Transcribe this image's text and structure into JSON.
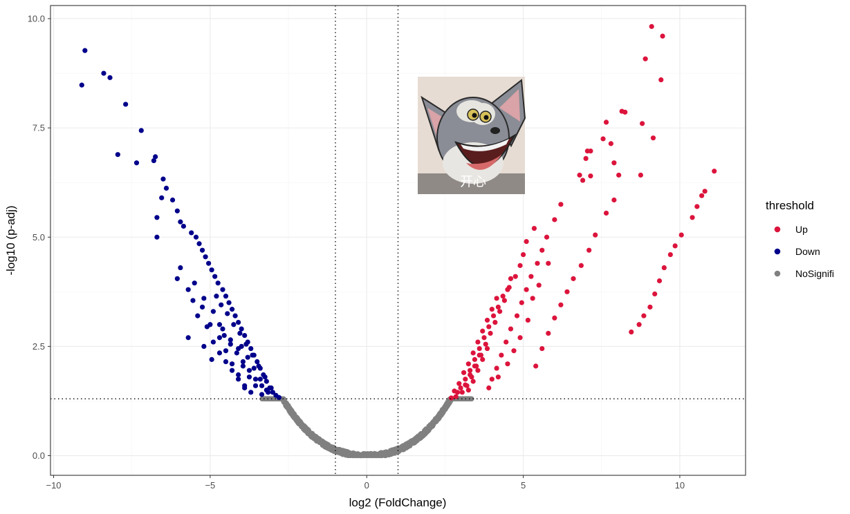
{
  "chart_data": {
    "type": "scatter",
    "title": "",
    "xlabel": "log2 (FoldChange)",
    "ylabel": "-log10 (p-adj)",
    "xlim": [
      -10.1,
      12.1
    ],
    "ylim": [
      -0.45,
      10.3
    ],
    "x_ticks": [
      -10,
      -5,
      0,
      5,
      10
    ],
    "x_tick_labels": [
      "−10",
      "−5",
      "0",
      "5",
      "10"
    ],
    "y_ticks": [
      0,
      2.5,
      5,
      7.5,
      10
    ],
    "y_tick_labels": [
      "0.0",
      "2.5",
      "5.0",
      "7.5",
      "10.0"
    ],
    "grid": true,
    "thresholds": {
      "log2fc": [
        -1,
        1
      ],
      "neg_log10_padj": 1.3
    },
    "legend": {
      "title": "threshold",
      "position": "right",
      "entries": [
        {
          "label": "Up",
          "color": "#DC143C"
        },
        {
          "label": "Down",
          "color": "#00008B"
        },
        {
          "label": "NoSignifi",
          "color": "#808080"
        }
      ]
    },
    "series": [
      {
        "name": "Up",
        "color": "#DC143C",
        "points": [
          [
            9.1,
            9.82
          ],
          [
            9.45,
            9.6
          ],
          [
            8.9,
            9.08
          ],
          [
            9.4,
            8.6
          ],
          [
            8.15,
            7.88
          ],
          [
            8.25,
            7.86
          ],
          [
            8.8,
            7.6
          ],
          [
            7.65,
            7.63
          ],
          [
            9.15,
            7.27
          ],
          [
            7.55,
            7.25
          ],
          [
            7.8,
            7.14
          ],
          [
            7.05,
            6.97
          ],
          [
            7.15,
            6.97
          ],
          [
            7.0,
            6.8
          ],
          [
            7.9,
            6.7
          ],
          [
            8.05,
            6.42
          ],
          [
            8.75,
            6.42
          ],
          [
            6.8,
            6.42
          ],
          [
            7.15,
            6.4
          ],
          [
            6.9,
            6.3
          ],
          [
            11.1,
            6.51
          ],
          [
            10.8,
            6.05
          ],
          [
            10.7,
            5.95
          ],
          [
            10.55,
            5.7
          ],
          [
            10.4,
            5.45
          ],
          [
            10.05,
            5.05
          ],
          [
            9.85,
            4.8
          ],
          [
            9.7,
            4.6
          ],
          [
            9.5,
            4.3
          ],
          [
            9.35,
            4.0
          ],
          [
            9.2,
            3.7
          ],
          [
            9.05,
            3.4
          ],
          [
            8.85,
            3.2
          ],
          [
            8.7,
            3.0
          ],
          [
            8.45,
            2.83
          ],
          [
            7.9,
            5.85
          ],
          [
            7.65,
            5.55
          ],
          [
            7.3,
            5.05
          ],
          [
            7.1,
            4.7
          ],
          [
            6.85,
            4.35
          ],
          [
            6.6,
            4.05
          ],
          [
            6.4,
            3.75
          ],
          [
            6.2,
            3.45
          ],
          [
            6.0,
            3.15
          ],
          [
            5.8,
            2.8
          ],
          [
            5.6,
            2.45
          ],
          [
            5.4,
            2.05
          ],
          [
            6.2,
            5.75
          ],
          [
            6.0,
            5.4
          ],
          [
            5.75,
            5.0
          ],
          [
            5.6,
            4.7
          ],
          [
            5.45,
            4.4
          ],
          [
            5.25,
            4.1
          ],
          [
            5.1,
            3.8
          ],
          [
            4.95,
            3.5
          ],
          [
            4.8,
            3.2
          ],
          [
            4.6,
            2.9
          ],
          [
            4.45,
            2.6
          ],
          [
            4.3,
            2.3
          ],
          [
            4.15,
            2.0
          ],
          [
            4.0,
            1.75
          ],
          [
            5.8,
            4.4
          ],
          [
            5.5,
            3.9
          ],
          [
            5.3,
            3.6
          ],
          [
            5.15,
            3.1
          ],
          [
            4.9,
            2.7
          ],
          [
            4.7,
            2.4
          ],
          [
            4.5,
            2.1
          ],
          [
            4.2,
            1.8
          ],
          [
            3.9,
            1.55
          ],
          [
            5.35,
            5.2
          ],
          [
            5.1,
            4.9
          ],
          [
            5.0,
            4.6
          ],
          [
            4.9,
            4.35
          ],
          [
            4.75,
            4.1
          ],
          [
            4.55,
            3.85
          ],
          [
            4.4,
            3.55
          ],
          [
            4.25,
            3.3
          ],
          [
            4.1,
            3.05
          ],
          [
            3.95,
            2.8
          ],
          [
            3.8,
            2.55
          ],
          [
            3.65,
            2.3
          ],
          [
            3.5,
            2.05
          ],
          [
            3.35,
            1.8
          ],
          [
            3.2,
            1.6
          ],
          [
            3.05,
            1.45
          ],
          [
            2.85,
            1.35
          ],
          [
            2.7,
            1.32
          ],
          [
            4.6,
            4.05
          ],
          [
            4.5,
            3.8
          ],
          [
            4.35,
            3.65
          ],
          [
            4.2,
            3.4
          ],
          [
            4.05,
            3.2
          ],
          [
            3.9,
            2.95
          ],
          [
            3.75,
            2.7
          ],
          [
            3.6,
            2.45
          ],
          [
            3.45,
            2.2
          ],
          [
            3.3,
            1.95
          ],
          [
            3.15,
            1.75
          ],
          [
            3.0,
            1.55
          ],
          [
            2.9,
            1.45
          ],
          [
            4.15,
            3.6
          ],
          [
            4.0,
            3.35
          ],
          [
            3.85,
            3.1
          ],
          [
            3.7,
            2.85
          ],
          [
            3.55,
            2.6
          ],
          [
            3.4,
            2.35
          ],
          [
            3.25,
            2.1
          ],
          [
            3.1,
            1.9
          ],
          [
            2.95,
            1.65
          ],
          [
            2.8,
            1.48
          ],
          [
            3.85,
            2.45
          ],
          [
            3.7,
            2.2
          ],
          [
            3.55,
            1.95
          ],
          [
            3.4,
            1.7
          ],
          [
            3.25,
            1.5
          ],
          [
            3.6,
            2.3
          ],
          [
            3.45,
            2.05
          ],
          [
            3.3,
            1.85
          ],
          [
            3.15,
            1.62
          ]
        ]
      },
      {
        "name": "Down",
        "color": "#00008B",
        "points": [
          [
            -9.0,
            9.27
          ],
          [
            -8.4,
            8.75
          ],
          [
            -8.2,
            8.65
          ],
          [
            -9.1,
            8.48
          ],
          [
            -7.7,
            8.04
          ],
          [
            -7.2,
            7.44
          ],
          [
            -7.95,
            6.89
          ],
          [
            -6.75,
            6.84
          ],
          [
            -7.35,
            6.7
          ],
          [
            -6.8,
            6.75
          ],
          [
            -6.5,
            6.33
          ],
          [
            -6.4,
            6.12
          ],
          [
            -6.55,
            5.9
          ],
          [
            -6.2,
            5.85
          ],
          [
            -6.05,
            5.6
          ],
          [
            -6.7,
            5.45
          ],
          [
            -5.95,
            5.35
          ],
          [
            -5.85,
            5.25
          ],
          [
            -5.6,
            5.1
          ],
          [
            -5.45,
            5.0
          ],
          [
            -5.35,
            4.85
          ],
          [
            -5.25,
            4.7
          ],
          [
            -5.15,
            4.55
          ],
          [
            -5.05,
            4.4
          ],
          [
            -4.95,
            4.25
          ],
          [
            -4.85,
            4.1
          ],
          [
            -4.75,
            3.95
          ],
          [
            -4.6,
            3.8
          ],
          [
            -4.5,
            3.65
          ],
          [
            -4.4,
            3.5
          ],
          [
            -4.3,
            3.35
          ],
          [
            -4.2,
            3.2
          ],
          [
            -4.1,
            3.05
          ],
          [
            -4.0,
            2.9
          ],
          [
            -3.9,
            2.75
          ],
          [
            -3.8,
            2.6
          ],
          [
            -3.7,
            2.45
          ],
          [
            -3.6,
            2.3
          ],
          [
            -3.5,
            2.15
          ],
          [
            -3.4,
            2.0
          ],
          [
            -3.3,
            1.85
          ],
          [
            -3.2,
            1.7
          ],
          [
            -3.1,
            1.55
          ],
          [
            -3.0,
            1.45
          ],
          [
            -2.9,
            1.38
          ],
          [
            -2.8,
            1.33
          ],
          [
            -6.7,
            5.0
          ],
          [
            -5.95,
            4.3
          ],
          [
            -6.05,
            4.05
          ],
          [
            -5.7,
            3.8
          ],
          [
            -5.55,
            3.55
          ],
          [
            -5.25,
            3.4
          ],
          [
            -5.0,
            3.0
          ],
          [
            -4.7,
            2.7
          ],
          [
            -4.5,
            2.4
          ],
          [
            -4.3,
            2.1
          ],
          [
            -4.1,
            1.85
          ],
          [
            -3.9,
            1.6
          ],
          [
            -5.5,
            3.95
          ],
          [
            -5.2,
            3.6
          ],
          [
            -4.9,
            3.3
          ],
          [
            -4.7,
            3.0
          ],
          [
            -4.55,
            2.75
          ],
          [
            -4.35,
            2.55
          ],
          [
            -4.15,
            2.35
          ],
          [
            -3.95,
            2.15
          ],
          [
            -3.75,
            1.95
          ],
          [
            -3.55,
            1.75
          ],
          [
            -3.35,
            1.6
          ],
          [
            -3.15,
            1.45
          ],
          [
            -4.8,
            3.65
          ],
          [
            -4.65,
            3.45
          ],
          [
            -4.45,
            3.25
          ],
          [
            -4.25,
            3.0
          ],
          [
            -4.05,
            2.8
          ],
          [
            -3.85,
            2.55
          ],
          [
            -3.65,
            2.3
          ],
          [
            -3.45,
            2.05
          ],
          [
            -3.25,
            1.8
          ],
          [
            -3.05,
            1.55
          ],
          [
            -5.4,
            3.2
          ],
          [
            -5.1,
            2.95
          ],
          [
            -4.9,
            2.6
          ],
          [
            -4.7,
            2.35
          ],
          [
            -4.5,
            2.15
          ],
          [
            -4.3,
            1.95
          ],
          [
            -4.1,
            1.75
          ],
          [
            -3.9,
            1.55
          ],
          [
            -3.7,
            1.45
          ],
          [
            -5.7,
            2.7
          ],
          [
            -5.2,
            2.5
          ],
          [
            -4.95,
            2.2
          ],
          [
            -4.0,
            2.5
          ],
          [
            -3.8,
            2.25
          ],
          [
            -3.6,
            2.0
          ],
          [
            -3.4,
            1.75
          ],
          [
            -3.2,
            1.5
          ],
          [
            -4.6,
            2.9
          ],
          [
            -4.35,
            2.65
          ],
          [
            -4.1,
            2.45
          ],
          [
            -3.95,
            2.05
          ],
          [
            -3.75,
            1.8
          ],
          [
            -3.55,
            1.6
          ],
          [
            -3.35,
            1.4
          ]
        ]
      },
      {
        "name": "NoSignifi",
        "color": "#808080",
        "generated": "dense U-shaped band of non-significant genes: -log10(p-adj) from 0 to 1.3 for |log2FC| up to about 3.4"
      }
    ]
  },
  "image_caption": "开心"
}
